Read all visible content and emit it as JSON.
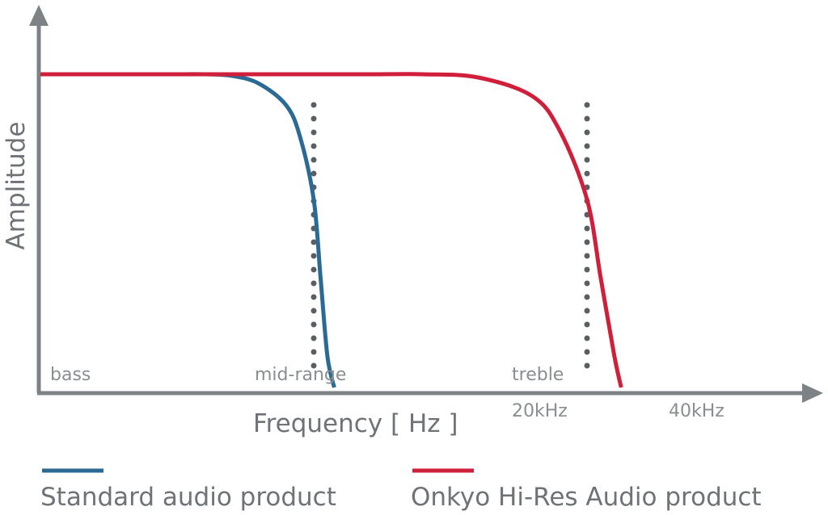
{
  "chart_data": {
    "type": "line",
    "title": "",
    "xlabel": "Frequency [ Hz ]",
    "ylabel": "Amplitude",
    "region_labels": [
      "bass",
      "mid-range",
      "treble"
    ],
    "x_ticks": [
      "20kHz",
      "40kHz"
    ],
    "grid": false,
    "legend_position": "bottom",
    "series": [
      {
        "name": "Standard audio product",
        "color": "#2b6a94",
        "x": [
          0,
          5,
          10,
          12,
          14,
          16,
          18,
          19,
          20,
          20.5,
          21,
          21.5
        ],
        "y": [
          1.0,
          1.0,
          1.0,
          1.0,
          0.995,
          0.97,
          0.9,
          0.8,
          0.6,
          0.35,
          0.1,
          0.0
        ]
      },
      {
        "name": "Onkyo Hi-Res Audio product",
        "color": "#cf1f3a",
        "x": [
          0,
          10,
          20,
          24,
          28,
          32,
          36,
          38,
          40,
          41,
          42,
          42.5
        ],
        "y": [
          1.0,
          1.0,
          1.0,
          1.0,
          1.0,
          0.99,
          0.93,
          0.82,
          0.6,
          0.35,
          0.1,
          0.0
        ]
      }
    ],
    "markers": [
      {
        "label": "20kHz",
        "x": 20
      },
      {
        "label": "40kHz",
        "x": 40
      }
    ],
    "axis_color": "#7d8287",
    "marker_color": "#5b5f63"
  }
}
